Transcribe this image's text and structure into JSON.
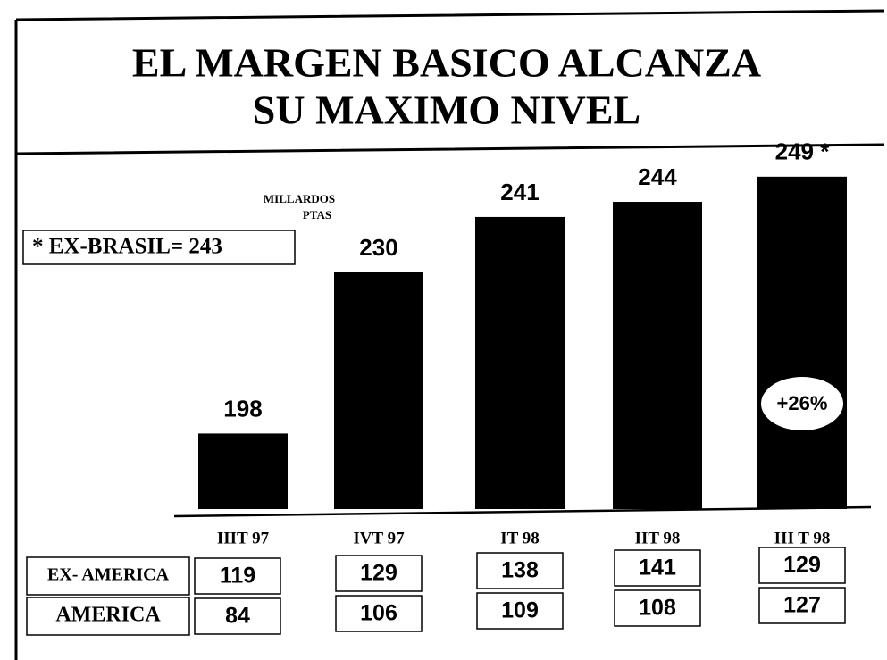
{
  "chart_data": {
    "type": "bar",
    "title": [
      "EL MARGEN  BASICO ALCANZA",
      "SU MAXIMO NIVEL"
    ],
    "unit_label": [
      "MILLARDOS",
      "PTAS"
    ],
    "note": "* EX-BRASIL= 243",
    "change_label": "+26%",
    "categories": [
      "IIIT 97",
      "IVT 97",
      "IT 98",
      "IIT 98",
      "III T 98"
    ],
    "values": [
      198,
      230,
      241,
      244,
      249
    ],
    "value_labels": [
      "198",
      "230",
      "241",
      "244",
      "249 *"
    ],
    "color": "#000000",
    "ylim": [
      183,
      255
    ],
    "table": {
      "rows": [
        {
          "name": "EX- AMERICA",
          "values": [
            119,
            129,
            138,
            141,
            129
          ]
        },
        {
          "name": "AMERICA",
          "values": [
            84,
            106,
            109,
            108,
            127
          ]
        }
      ]
    }
  }
}
